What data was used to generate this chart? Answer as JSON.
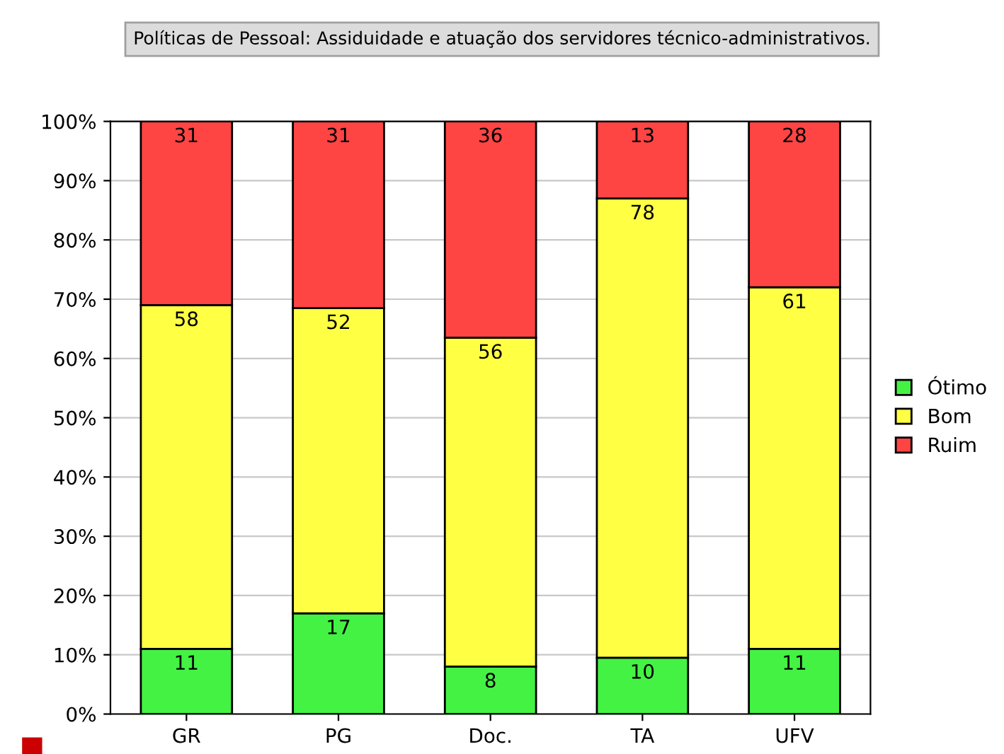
{
  "chart_data": {
    "type": "bar",
    "title": "Políticas de Pessoal: Assiduidade e atuação dos servidores técnico-administrativos.",
    "categories": [
      "GR",
      "PG",
      "Doc.",
      "TA",
      "UFV"
    ],
    "stacked": true,
    "series": [
      {
        "name": "Ótimo",
        "color": "#44f244",
        "values": [
          11,
          17,
          8,
          9.5,
          11
        ],
        "value_labels": [
          "11",
          "17",
          "8",
          "10",
          "11"
        ]
      },
      {
        "name": "Bom",
        "color": "#ffff44",
        "values": [
          58,
          51.5,
          55.5,
          77.5,
          61
        ],
        "value_labels": [
          "58",
          "52",
          "56",
          "78",
          "61"
        ]
      },
      {
        "name": "Ruim",
        "color": "#ff4444",
        "values": [
          31,
          31.5,
          36.5,
          13,
          28
        ],
        "value_labels": [
          "31",
          "31",
          "36",
          "13",
          "28"
        ]
      }
    ],
    "ylim": [
      0,
      100
    ],
    "yticks": [
      {
        "value": 0,
        "label": "0%"
      },
      {
        "value": 10,
        "label": "10%"
      },
      {
        "value": 20,
        "label": "20%"
      },
      {
        "value": 30,
        "label": "30%"
      },
      {
        "value": 40,
        "label": "40%"
      },
      {
        "value": 50,
        "label": "50%"
      },
      {
        "value": 60,
        "label": "60%"
      },
      {
        "value": 70,
        "label": "70%"
      },
      {
        "value": 80,
        "label": "80%"
      },
      {
        "value": 90,
        "label": "90%"
      },
      {
        "value": 100,
        "label": "100%"
      }
    ],
    "grid": "y",
    "legend": "right"
  }
}
